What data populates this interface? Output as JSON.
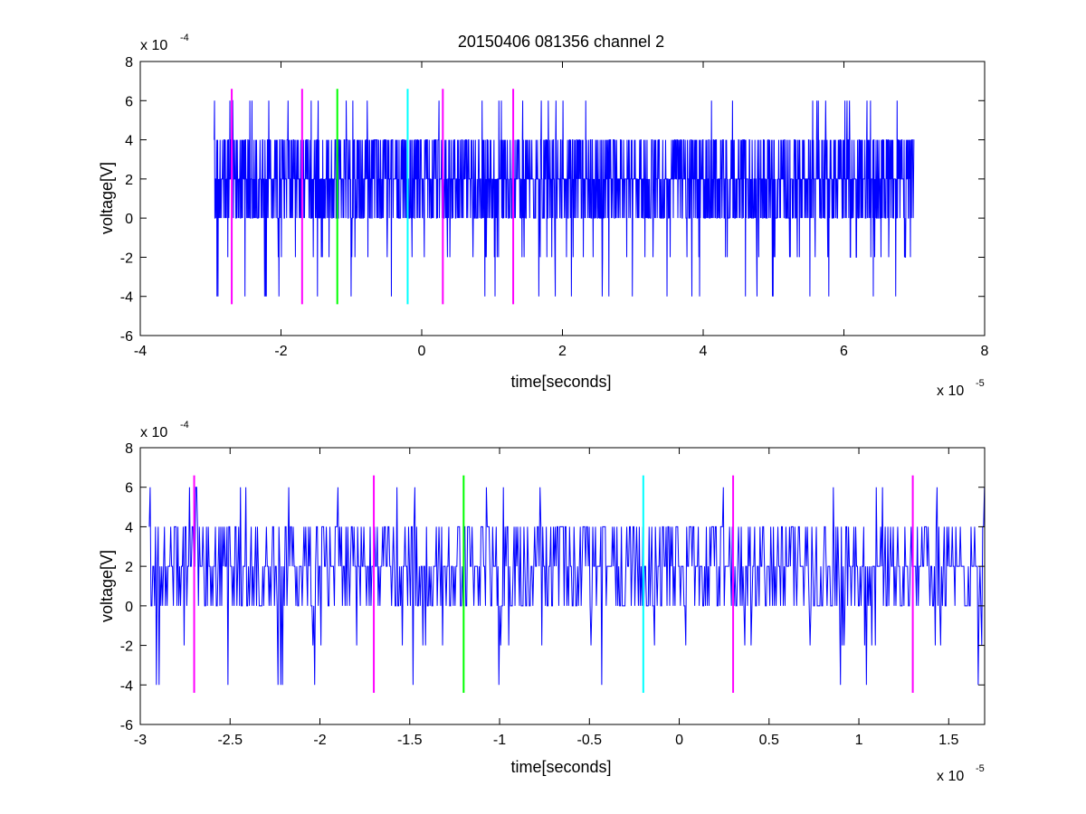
{
  "figure": {
    "title": "20150406 081356 channel 2"
  },
  "colors": {
    "signal": "#0000ff",
    "marker_magenta": "#ff00ff",
    "marker_green": "#00ff00",
    "marker_cyan": "#00ffff",
    "axes": "#000000",
    "background": "#ffffff"
  },
  "chart_data": [
    {
      "type": "line",
      "title": "20150406 081356 channel 2",
      "xlabel": "time[seconds]",
      "ylabel": "voltage[V]",
      "x_exponent": "x 10",
      "x_exponent_power": "-5",
      "y_exponent": "x 10",
      "y_exponent_power": "-4",
      "xlim": [
        -4,
        8
      ],
      "ylim": [
        -6,
        8
      ],
      "xticks": [
        "-4",
        "-2",
        "0",
        "2",
        "4",
        "6",
        "8"
      ],
      "xtick_values": [
        -4,
        -2,
        0,
        2,
        4,
        6,
        8
      ],
      "yticks": [
        "-6",
        "-4",
        "-2",
        "0",
        "2",
        "4",
        "6",
        "8"
      ],
      "ytick_values": [
        -6,
        -4,
        -2,
        0,
        2,
        4,
        6,
        8
      ],
      "grid": false,
      "signal_range_x": [
        -2.95,
        7.0
      ],
      "signal_levels": [
        -4,
        -2,
        0,
        2,
        4,
        6
      ],
      "markers": [
        {
          "x": -2.7,
          "y_range": [
            -4.4,
            6.6
          ],
          "color": "magenta"
        },
        {
          "x": -1.7,
          "y_range": [
            -4.4,
            6.6
          ],
          "color": "magenta"
        },
        {
          "x": -1.2,
          "y_range": [
            -4.4,
            6.6
          ],
          "color": "green"
        },
        {
          "x": -0.2,
          "y_range": [
            -4.4,
            6.6
          ],
          "color": "cyan"
        },
        {
          "x": 0.3,
          "y_range": [
            -4.4,
            6.6
          ],
          "color": "magenta"
        },
        {
          "x": 1.3,
          "y_range": [
            -4.4,
            6.6
          ],
          "color": "magenta"
        }
      ]
    },
    {
      "type": "line",
      "title": "",
      "xlabel": "time[seconds]",
      "ylabel": "voltage[V]",
      "x_exponent": "x 10",
      "x_exponent_power": "-5",
      "y_exponent": "x 10",
      "y_exponent_power": "-4",
      "xlim": [
        -3.0,
        1.7
      ],
      "ylim": [
        -6,
        8
      ],
      "xticks": [
        "-3",
        "-2.5",
        "-2",
        "-1.5",
        "-1",
        "-0.5",
        "0",
        "0.5",
        "1",
        "1.5"
      ],
      "xtick_values": [
        -3,
        -2.5,
        -2,
        -1.5,
        -1,
        -0.5,
        0,
        0.5,
        1,
        1.5
      ],
      "yticks": [
        "-6",
        "-4",
        "-2",
        "0",
        "2",
        "4",
        "6",
        "8"
      ],
      "ytick_values": [
        -6,
        -4,
        -2,
        0,
        2,
        4,
        6,
        8
      ],
      "grid": false,
      "signal_range_x": [
        -2.95,
        1.7
      ],
      "signal_levels": [
        -4,
        -2,
        0,
        2,
        4,
        6
      ],
      "markers": [
        {
          "x": -2.7,
          "y_range": [
            -4.4,
            6.6
          ],
          "color": "magenta"
        },
        {
          "x": -1.7,
          "y_range": [
            -4.4,
            6.6
          ],
          "color": "magenta"
        },
        {
          "x": -1.2,
          "y_range": [
            -4.4,
            6.6
          ],
          "color": "green"
        },
        {
          "x": -0.2,
          "y_range": [
            -4.4,
            6.6
          ],
          "color": "cyan"
        },
        {
          "x": 0.3,
          "y_range": [
            -4.4,
            6.6
          ],
          "color": "magenta"
        },
        {
          "x": 1.3,
          "y_range": [
            -4.4,
            6.6
          ],
          "color": "magenta"
        }
      ]
    }
  ]
}
